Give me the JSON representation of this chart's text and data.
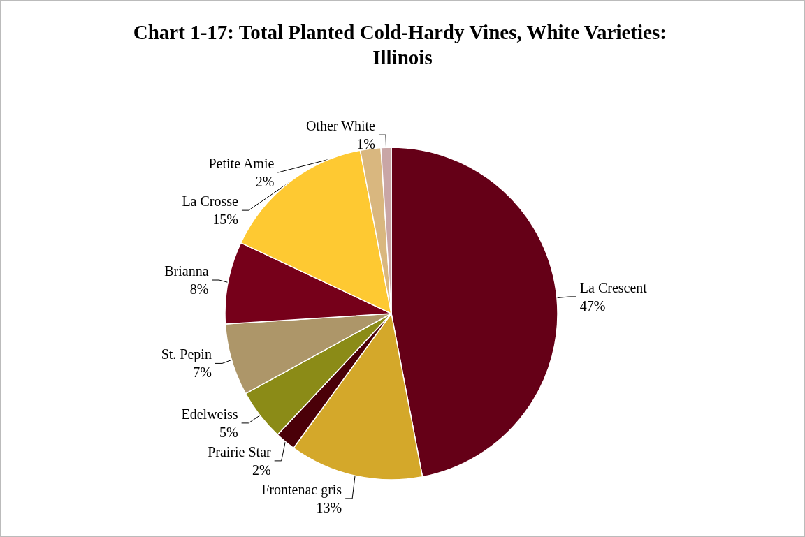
{
  "chart_data": {
    "type": "pie",
    "title": "Chart 1-17: Total Planted Cold-Hardy Vines, White Varieties: Illinois",
    "categories": [
      "La Crescent",
      "Frontenac gris",
      "Prairie Star",
      "Edelweiss",
      "St. Pepin",
      "Brianna",
      "La Crosse",
      "Petite Amie",
      "Other White"
    ],
    "values": [
      47,
      13,
      2,
      5,
      7,
      8,
      15,
      2,
      1
    ],
    "value_labels": [
      "47%",
      "13%",
      "2%",
      "5%",
      "7%",
      "8%",
      "15%",
      "2%",
      "1%"
    ],
    "colors": [
      "#650017",
      "#d4a82a",
      "#4a0008",
      "#8b8b17",
      "#ad9669",
      "#76001a",
      "#fec932",
      "#d9b77f",
      "#c9a6a6"
    ],
    "legend": false
  }
}
